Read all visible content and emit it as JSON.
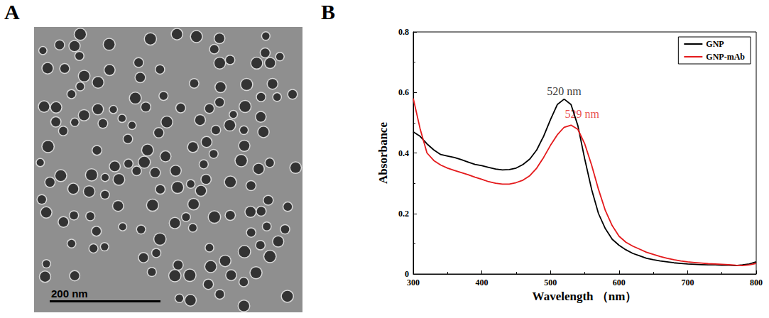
{
  "image_panel": {
    "letter": "A",
    "scale_bar": "200 nm"
  },
  "chart_data": {
    "letter": "B",
    "type": "line",
    "x_label": "Wavelength （nm）",
    "y_label": "Absorbance",
    "x": [
      300,
      310,
      320,
      330,
      340,
      350,
      360,
      370,
      380,
      390,
      400,
      410,
      420,
      430,
      440,
      450,
      460,
      470,
      480,
      490,
      500,
      510,
      520,
      530,
      540,
      550,
      560,
      570,
      580,
      590,
      600,
      610,
      620,
      630,
      640,
      650,
      660,
      670,
      680,
      690,
      700,
      710,
      720,
      730,
      740,
      750,
      760,
      770,
      780,
      790,
      800
    ],
    "series": [
      {
        "name": "GNP",
        "color": "#000000",
        "values": [
          0.47,
          0.455,
          0.43,
          0.41,
          0.395,
          0.39,
          0.385,
          0.378,
          0.37,
          0.362,
          0.358,
          0.352,
          0.347,
          0.344,
          0.345,
          0.35,
          0.362,
          0.38,
          0.41,
          0.455,
          0.51,
          0.56,
          0.578,
          0.56,
          0.49,
          0.38,
          0.28,
          0.2,
          0.15,
          0.115,
          0.095,
          0.08,
          0.068,
          0.06,
          0.052,
          0.047,
          0.043,
          0.04,
          0.037,
          0.035,
          0.033,
          0.032,
          0.031,
          0.03,
          0.03,
          0.029,
          0.029,
          0.028,
          0.03,
          0.033,
          0.04
        ]
      },
      {
        "name": "GNP-mAb",
        "color": "#e41a1c",
        "values": [
          0.58,
          0.48,
          0.4,
          0.375,
          0.36,
          0.35,
          0.342,
          0.335,
          0.328,
          0.32,
          0.313,
          0.305,
          0.3,
          0.297,
          0.297,
          0.302,
          0.31,
          0.325,
          0.35,
          0.385,
          0.425,
          0.46,
          0.485,
          0.492,
          0.478,
          0.43,
          0.36,
          0.28,
          0.21,
          0.16,
          0.125,
          0.105,
          0.092,
          0.082,
          0.072,
          0.065,
          0.058,
          0.052,
          0.047,
          0.043,
          0.04,
          0.038,
          0.036,
          0.034,
          0.033,
          0.032,
          0.031,
          0.029,
          0.028,
          0.03,
          0.035
        ]
      }
    ],
    "annotations": [
      {
        "text": "520 nm",
        "x": 520,
        "y": 0.605,
        "color": "#000000"
      },
      {
        "text": "529 nm",
        "x": 546,
        "y": 0.53,
        "color": "#e41a1c"
      }
    ],
    "xlim": [
      300,
      800
    ],
    "xticks": [
      300,
      400,
      500,
      600,
      700,
      800
    ],
    "ylim": [
      0,
      0.8
    ],
    "yticks": [
      0,
      0.2,
      0.4,
      0.6,
      0.8
    ],
    "grid": false,
    "legend": "top-right"
  }
}
